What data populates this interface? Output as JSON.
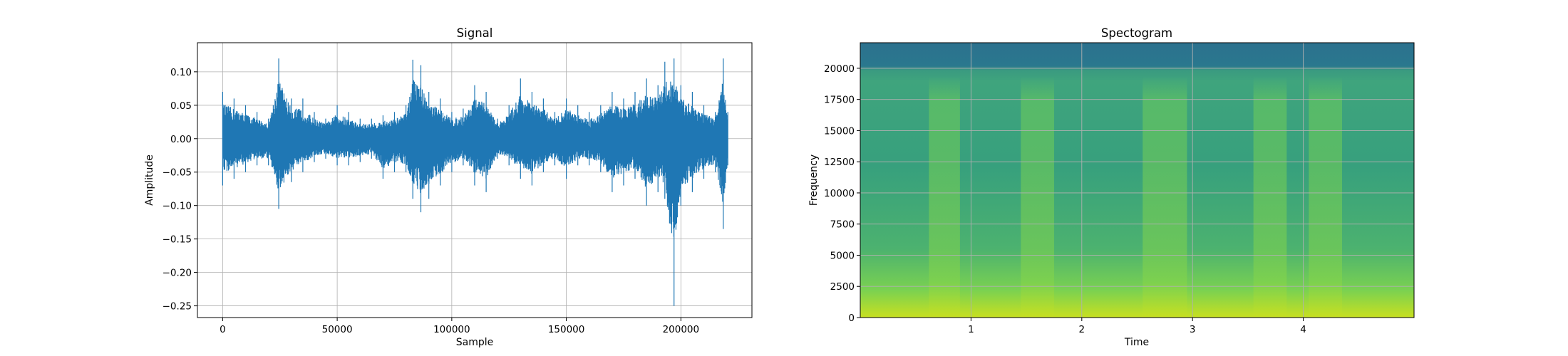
{
  "chart_data": [
    {
      "type": "line",
      "title": "Signal",
      "xlabel": "Sample",
      "ylabel": "Amplitude",
      "xlim": [
        -11000,
        231000
      ],
      "ylim": [
        -0.2675,
        0.1435
      ],
      "xticks": [
        0,
        50000,
        100000,
        150000,
        200000
      ],
      "xtick_labels": [
        "0",
        "50000",
        "100000",
        "150000",
        "200000"
      ],
      "yticks": [
        0.1,
        0.05,
        0.0,
        -0.05,
        -0.1,
        -0.15,
        -0.2,
        -0.25
      ],
      "ytick_labels": [
        "0.10",
        "0.05",
        "0.00",
        "−0.05",
        "−0.10",
        "−0.15",
        "−0.20",
        "−0.25"
      ],
      "grid": true,
      "color": "#1f77b4",
      "series": [
        {
          "x": [
            0,
            5000,
            10000,
            15000,
            20000,
            24500,
            30000,
            35000,
            40000,
            45000,
            50000,
            55000,
            60000,
            65000,
            70000,
            75000,
            80000,
            83000,
            86500,
            90000,
            95000,
            100000,
            105000,
            110000,
            115000,
            120000,
            125000,
            130000,
            135000,
            140000,
            145000,
            150000,
            155000,
            160000,
            165000,
            170000,
            175000,
            180000,
            185000,
            190000,
            193000,
            197000,
            200000,
            205000,
            210000,
            215000,
            218500,
            220500
          ],
          "y_max": [
            0.07,
            0.06,
            0.05,
            0.04,
            0.03,
            0.12,
            0.06,
            0.06,
            0.04,
            0.03,
            0.05,
            0.04,
            0.03,
            0.03,
            0.035,
            0.04,
            0.05,
            0.118,
            0.11,
            0.07,
            0.06,
            0.04,
            0.045,
            0.08,
            0.07,
            0.03,
            0.05,
            0.09,
            0.07,
            0.06,
            0.04,
            0.06,
            0.05,
            0.04,
            0.05,
            0.07,
            0.06,
            0.07,
            0.09,
            0.08,
            0.115,
            0.12,
            0.08,
            0.07,
            0.05,
            0.04,
            0.12,
            0.04
          ],
          "y_min": [
            -0.07,
            -0.06,
            -0.05,
            -0.04,
            -0.04,
            -0.105,
            -0.065,
            -0.05,
            -0.035,
            -0.03,
            -0.04,
            -0.04,
            -0.035,
            -0.03,
            -0.06,
            -0.05,
            -0.05,
            -0.09,
            -0.11,
            -0.09,
            -0.07,
            -0.05,
            -0.04,
            -0.07,
            -0.08,
            -0.03,
            -0.04,
            -0.06,
            -0.07,
            -0.05,
            -0.04,
            -0.06,
            -0.04,
            -0.04,
            -0.05,
            -0.08,
            -0.07,
            -0.06,
            -0.1,
            -0.08,
            -0.09,
            -0.25,
            -0.1,
            -0.08,
            -0.06,
            -0.05,
            -0.135,
            -0.04
          ]
        }
      ]
    },
    {
      "type": "heatmap",
      "title": "Spectogram",
      "xlabel": "Time",
      "ylabel": "Frequency",
      "xlim": [
        0,
        5.0
      ],
      "ylim": [
        0,
        22050
      ],
      "xticks": [
        1,
        2,
        3,
        4
      ],
      "xtick_labels": [
        "1",
        "2",
        "3",
        "4"
      ],
      "yticks": [
        0,
        2500,
        5000,
        7500,
        10000,
        12500,
        15000,
        17500,
        20000
      ],
      "ytick_labels": [
        "0",
        "2500",
        "5000",
        "7500",
        "10000",
        "12500",
        "15000",
        "17500",
        "20000"
      ],
      "grid": true,
      "colormap": "viridis",
      "loud_segments_time": [
        [
          0.62,
          0.9
        ],
        [
          1.45,
          1.75
        ],
        [
          2.55,
          2.95
        ],
        [
          3.55,
          3.85
        ],
        [
          4.05,
          4.35
        ]
      ],
      "cutoff_frequency": 20000
    }
  ]
}
